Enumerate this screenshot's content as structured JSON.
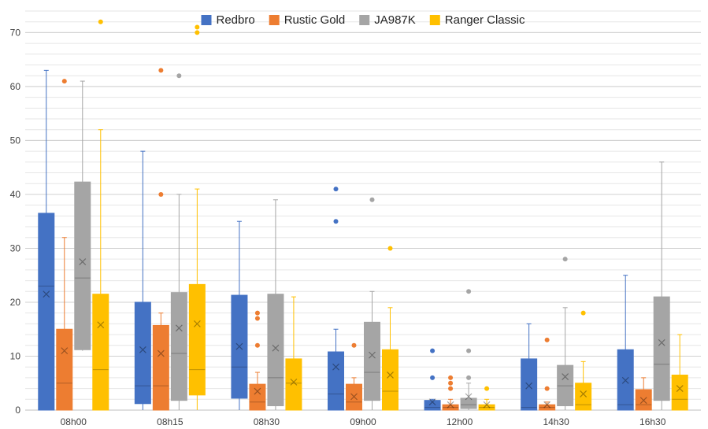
{
  "chart_data": {
    "type": "box",
    "categories": [
      "08h00",
      "08h15",
      "08h30",
      "09h00",
      "12h00",
      "14h30",
      "16h30"
    ],
    "ylim": [
      0,
      74
    ],
    "yticks": [
      0,
      10,
      20,
      30,
      40,
      50,
      60,
      70
    ],
    "grid": true,
    "legend_position": "top",
    "series": [
      {
        "name": "Redbro",
        "color": "#4472C4",
        "boxes": [
          {
            "min": 0,
            "q1": 0,
            "median": 23,
            "q3": 36.5,
            "max": 63,
            "mean": 21.5,
            "outliers": []
          },
          {
            "min": 0,
            "q1": 1.2,
            "median": 4.5,
            "q3": 20,
            "max": 48,
            "mean": 11.2,
            "outliers": []
          },
          {
            "min": 0,
            "q1": 2.2,
            "median": 8,
            "q3": 21.3,
            "max": 35,
            "mean": 11.8,
            "outliers": []
          },
          {
            "min": 0,
            "q1": 0,
            "median": 3,
            "q3": 10.8,
            "max": 15,
            "mean": 8,
            "outliers": [
              35,
              41
            ]
          },
          {
            "min": 0,
            "q1": 0,
            "median": 0.5,
            "q3": 1.8,
            "max": 2,
            "mean": 1.5,
            "outliers": [
              6,
              11
            ]
          },
          {
            "min": 0,
            "q1": 0,
            "median": 0.5,
            "q3": 9.5,
            "max": 16,
            "mean": 4.5,
            "outliers": []
          },
          {
            "min": 0,
            "q1": 0,
            "median": 1,
            "q3": 11.2,
            "max": 25,
            "mean": 5.5,
            "outliers": []
          }
        ]
      },
      {
        "name": "Rustic Gold",
        "color": "#ED7D31",
        "boxes": [
          {
            "min": 0,
            "q1": 0,
            "median": 5,
            "q3": 15,
            "max": 32,
            "mean": 11,
            "outliers": [
              61
            ]
          },
          {
            "min": 0,
            "q1": 0,
            "median": 4.5,
            "q3": 15.7,
            "max": 18,
            "mean": 10.5,
            "outliers": [
              40,
              63
            ]
          },
          {
            "min": 0,
            "q1": 0,
            "median": 1.5,
            "q3": 4.8,
            "max": 7,
            "mean": 3.5,
            "outliers": [
              12,
              17,
              18
            ]
          },
          {
            "min": 0,
            "q1": 0,
            "median": 1.5,
            "q3": 4.8,
            "max": 6,
            "mean": 2.5,
            "outliers": [
              12
            ]
          },
          {
            "min": 0,
            "q1": 0,
            "median": 0.5,
            "q3": 1,
            "max": 2,
            "mean": 1,
            "outliers": [
              4,
              5,
              6
            ]
          },
          {
            "min": 0,
            "q1": 0,
            "median": 0.5,
            "q3": 1,
            "max": 1.5,
            "mean": 1,
            "outliers": [
              4,
              13
            ]
          },
          {
            "min": 0,
            "q1": 0,
            "median": 1,
            "q3": 3.8,
            "max": 6,
            "mean": 1.8,
            "outliers": []
          }
        ]
      },
      {
        "name": "JA987K",
        "color": "#A5A5A5",
        "boxes": [
          {
            "min": 11,
            "q1": 11.2,
            "median": 24.5,
            "q3": 42.3,
            "max": 61,
            "mean": 27.5,
            "outliers": []
          },
          {
            "min": 0,
            "q1": 1.8,
            "median": 10.5,
            "q3": 21.8,
            "max": 40,
            "mean": 15.2,
            "outliers": [
              62
            ]
          },
          {
            "min": 0,
            "q1": 0.8,
            "median": 6,
            "q3": 21.5,
            "max": 39,
            "mean": 11.5,
            "outliers": []
          },
          {
            "min": 0,
            "q1": 1.8,
            "median": 7,
            "q3": 16.3,
            "max": 22,
            "mean": 10.2,
            "outliers": [
              39
            ]
          },
          {
            "min": 0,
            "q1": 0.3,
            "median": 1,
            "q3": 2.2,
            "max": 5,
            "mean": 2.5,
            "outliers": [
              6,
              11,
              22
            ]
          },
          {
            "min": 0,
            "q1": 0.8,
            "median": 4.5,
            "q3": 8.3,
            "max": 19,
            "mean": 6.2,
            "outliers": [
              28
            ]
          },
          {
            "min": 0,
            "q1": 1.8,
            "median": 8.5,
            "q3": 21,
            "max": 46,
            "mean": 12.5,
            "outliers": []
          }
        ]
      },
      {
        "name": "Ranger Classic",
        "color": "#FFC000",
        "boxes": [
          {
            "min": 0,
            "q1": 0,
            "median": 7.5,
            "q3": 21.5,
            "max": 52,
            "mean": 15.8,
            "outliers": [
              72
            ]
          },
          {
            "min": 0,
            "q1": 2.8,
            "median": 7.5,
            "q3": 23.3,
            "max": 41,
            "mean": 16,
            "outliers": [
              70,
              71
            ]
          },
          {
            "min": 0,
            "q1": 0,
            "median": 5,
            "q3": 9.5,
            "max": 21,
            "mean": 5.2,
            "outliers": []
          },
          {
            "min": 0,
            "q1": 0,
            "median": 3.5,
            "q3": 11.2,
            "max": 19,
            "mean": 6.5,
            "outliers": [
              30
            ]
          },
          {
            "min": 0,
            "q1": 0,
            "median": 0.5,
            "q3": 1,
            "max": 2,
            "mean": 1,
            "outliers": [
              4
            ]
          },
          {
            "min": 0,
            "q1": 0,
            "median": 1,
            "q3": 5,
            "max": 9,
            "mean": 3,
            "outliers": [
              18
            ]
          },
          {
            "min": 0,
            "q1": 0,
            "median": 2,
            "q3": 6.5,
            "max": 14,
            "mean": 4,
            "outliers": []
          }
        ]
      }
    ]
  }
}
